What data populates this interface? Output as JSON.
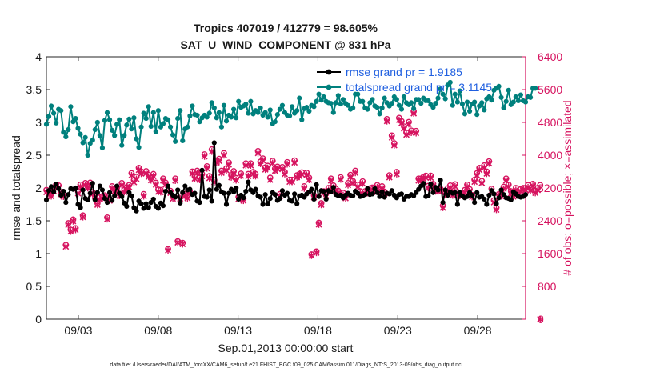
{
  "chart_data": {
    "type": "line",
    "title": "Tropics 407019 / 412779 = 98.605%",
    "subtitle": "SAT_U_WIND_COMPONENT @ 831 hPa",
    "xlabel": "Sep.01,2013 00:00:00 start",
    "ylabel": "rmse and totalspread",
    "ylabel_right": "# of obs: o=possible; ×=assimilated",
    "x_ticks": [
      "09/03",
      "09/08",
      "09/13",
      "09/18",
      "09/23",
      "09/28"
    ],
    "x_tick_days": [
      3,
      8,
      13,
      18,
      23,
      28
    ],
    "x_range_days": [
      1.0,
      31.0
    ],
    "ylim": [
      0,
      4
    ],
    "y_ticks": [
      "0",
      "0.5",
      "1",
      "1.5",
      "2",
      "2.5",
      "3",
      "3.5",
      "4"
    ],
    "ylim_right": [
      0,
      6400
    ],
    "y_ticks_right": [
      "0",
      "800",
      "1600",
      "2400",
      "3200",
      "4000",
      "4800",
      "5600",
      "6400"
    ],
    "legend_position": "top-right",
    "colors": {
      "rmse": "#000000",
      "totalspread": "#00807d",
      "obs": "#d6135f",
      "legend_text": "#1f5fe0"
    },
    "footer": "data file: /Users/raeder/DAI/ATM_forcXX/CAM6_setup/f.e21.FHIST_BGC.f09_025.CAM6assim.011/Diags_NTrS_2013-09/obs_diag_output.nc",
    "series": [
      {
        "name": "rmse grand pr = 1.9185",
        "marker": "filled-circle",
        "values": [
          1.82,
          1.96,
          2.02,
          1.94,
          2.06,
          1.99,
          1.89,
          1.95,
          1.78,
          1.9,
          1.99,
          1.98,
          2.0,
          1.75,
          1.7,
          1.97,
          1.84,
          1.82,
          1.92,
          2.07,
          1.82,
          1.93,
          2.03,
          1.97,
          1.84,
          1.78,
          1.93,
          1.81,
          1.88,
          2.03,
          1.92,
          1.87,
          1.77,
          1.72,
          1.93,
          1.88,
          1.7,
          1.65,
          1.8,
          1.76,
          1.69,
          1.76,
          1.7,
          1.78,
          1.83,
          1.72,
          1.69,
          1.77,
          1.73,
          1.95,
          2.03,
          1.93,
          1.89,
          1.86,
          1.97,
          1.77,
          1.93,
          2.03,
          1.97,
          1.98,
          1.9,
          1.92,
          1.8,
          1.78,
          2.27,
          1.87,
          1.86,
          1.97,
          1.8,
          2.69,
          1.98,
          2.04,
          1.94,
          1.92,
          1.75,
          1.92,
          1.98,
          1.94,
          2.0,
          1.83,
          1.89,
          1.85,
          1.95,
          2.09,
          1.97,
          1.93,
          1.98,
          1.88,
          1.86,
          1.75,
          1.9,
          1.76,
          1.84,
          1.93,
          1.9,
          1.81,
          1.84,
          1.96,
          1.89,
          1.92,
          1.81,
          1.8,
          1.91,
          1.76,
          1.88,
          1.89,
          1.86,
          1.91,
          1.94,
          1.98,
          1.83,
          2.05,
          1.87,
          1.96,
          1.95,
          1.83,
          1.96,
          1.94,
          2.01,
          1.9,
          1.88,
          1.89,
          1.85,
          1.89,
          1.92,
          1.89,
          1.88,
          1.95,
          1.92,
          1.87,
          1.88,
          1.9,
          1.99,
          1.9,
          1.91,
          1.99,
          1.93,
          1.87,
          1.94,
          1.86,
          1.92,
          1.91,
          1.96,
          1.89,
          1.85,
          1.9,
          1.91,
          1.83,
          1.87,
          1.87,
          1.9,
          1.88,
          1.93,
          1.98,
          2.03,
          2.07,
          1.87,
          1.88,
          2.06,
          1.93,
          2.01,
          1.97,
          2.12,
          1.78,
          1.97,
          1.89,
          1.94,
          1.92,
          1.93,
          1.75,
          1.93,
          1.88,
          1.85,
          1.87,
          1.93,
          1.89,
          1.78,
          1.93,
          1.86,
          1.87,
          1.83,
          1.75,
          1.89,
          1.96,
          1.91,
          1.76,
          1.85,
          1.97,
          1.9,
          1.85,
          1.84,
          1.82,
          1.94,
          1.91,
          1.87,
          1.86,
          1.87,
          1.9
        ]
      },
      {
        "name": "totalspread grand pr = 3.1145",
        "marker": "filled-circle",
        "values": [
          2.97,
          3.09,
          3.25,
          3.14,
          2.99,
          3.2,
          3.18,
          2.85,
          2.78,
          2.89,
          3.24,
          3.01,
          3.06,
          2.91,
          2.82,
          2.69,
          2.77,
          2.5,
          2.68,
          2.73,
          2.89,
          3.0,
          2.8,
          2.61,
          3.03,
          3.15,
          3.04,
          2.88,
          2.8,
          2.97,
          3.04,
          2.65,
          2.8,
          2.96,
          3.05,
          2.9,
          3.07,
          2.75,
          2.62,
          2.93,
          3.14,
          3.06,
          3.24,
          2.94,
          3.15,
          2.86,
          3.18,
          2.93,
          2.98,
          3.06,
          3.04,
          2.93,
          2.81,
          2.71,
          3.06,
          3.18,
          2.72,
          2.9,
          2.93,
          3.1,
          3.25,
          3.12,
          3.11,
          3.01,
          3.07,
          3.11,
          3.08,
          3.14,
          3.3,
          3.22,
          3.07,
          3.15,
          2.93,
          3.26,
          3.02,
          3.11,
          3.08,
          3.2,
          3.07,
          3.32,
          3.23,
          3.25,
          3.28,
          3.14,
          3.32,
          3.13,
          3.18,
          3.15,
          3.22,
          3.11,
          3.15,
          3.08,
          3.19,
          2.98,
          3.01,
          3.12,
          3.2,
          3.26,
          3.15,
          3.11,
          3.1,
          3.24,
          3.14,
          3.18,
          3.37,
          3.04,
          3.21,
          3.23,
          3.17,
          3.26,
          3.24,
          3.32,
          3.43,
          3.34,
          3.39,
          3.32,
          3.3,
          3.29,
          3.15,
          3.3,
          3.41,
          3.28,
          3.35,
          3.29,
          3.26,
          3.2,
          3.22,
          3.43,
          3.43,
          3.32,
          3.32,
          3.22,
          3.2,
          3.3,
          3.35,
          3.25,
          3.23,
          3.13,
          3.22,
          3.37,
          3.3,
          3.25,
          3.29,
          3.39,
          3.35,
          3.26,
          3.2,
          3.39,
          3.3,
          3.27,
          3.3,
          3.21,
          3.35,
          3.35,
          3.29,
          3.37,
          3.33,
          3.33,
          3.27,
          3.23,
          3.29,
          3.37,
          3.51,
          3.43,
          3.36,
          3.57,
          3.61,
          3.26,
          3.43,
          3.31,
          3.48,
          3.28,
          3.13,
          3.31,
          3.17,
          3.28,
          3.31,
          3.12,
          3.25,
          3.3,
          3.19,
          3.36,
          3.39,
          3.34,
          3.49,
          3.52,
          3.55,
          3.38,
          3.22,
          3.32,
          3.49,
          3.27,
          3.31,
          3.39,
          3.33,
          3.42,
          3.33,
          3.31,
          3.39,
          3.38,
          3.52,
          3.52
        ]
      },
      {
        "name": "obs possible",
        "marker": "circle",
        "axis": "right",
        "values": [
          3150,
          3100,
          3050,
          3180,
          3280,
          3260,
          3100,
          3040,
          1810,
          2340,
          2180,
          2430,
          2220,
          3120,
          3280,
          2530,
          3320,
          3250,
          3330,
          3100,
          3040,
          2830,
          2970,
          3000,
          3020,
          2480,
          2930,
          3240,
          3170,
          3200,
          3060,
          3320,
          3150,
          3220,
          3270,
          3560,
          3390,
          3470,
          3690,
          3600,
          3050,
          3610,
          3520,
          3440,
          3540,
          3330,
          3160,
          3150,
          3430,
          3330,
          1710,
          3130,
          2990,
          3430,
          1900,
          2990,
          1860,
          3050,
          3000,
          3110,
          3600,
          3480,
          3620,
          3450,
          3540,
          4020,
          3730,
          3490,
          4140,
          3390,
          3870,
          3910,
          3620,
          4050,
          3680,
          3820,
          3510,
          3610,
          3440,
          2980,
          3550,
          2940,
          3800,
          3540,
          3800,
          3590,
          3540,
          4100,
          3840,
          3920,
          3700,
          3740,
          3450,
          3860,
          3670,
          3720,
          3050,
          3710,
          3590,
          3830,
          3400,
          3400,
          3870,
          3510,
          3540,
          3580,
          3240,
          3570,
          3450,
          1580,
          3020,
          1650,
          2350,
          2830,
          3120,
          3060,
          3200,
          3430,
          3260,
          3180,
          3130,
          3460,
          3080,
          3000,
          3320,
          3520,
          3370,
          3620,
          3280,
          3120,
          3360,
          3120,
          3130,
          3190,
          3210,
          3160,
          3270,
          3150,
          3240,
          3110,
          4880,
          3510,
          4480,
          4290,
          3590,
          4910,
          4830,
          4700,
          4550,
          4810,
          4600,
          5070,
          4590,
          3430,
          3430,
          3470,
          3500,
          3250,
          3500,
          3300,
          3170,
          3170,
          3180,
          2770,
          3080,
          3190,
          3260,
          3070,
          3290,
          3100,
          3060,
          3060,
          3150,
          3280,
          3170,
          3030,
          3400,
          3560,
          3690,
          3370,
          3750,
          3600,
          3850,
          3180,
          2900,
          2720,
          3050,
          3050,
          3230,
          3430,
          3280,
          3120,
          3040,
          3200,
          3100,
          3170,
          3200,
          3200,
          3270,
          3190,
          3300,
          3130,
          3200,
          3270
        ]
      },
      {
        "name": "obs assimilated",
        "marker": "cross",
        "axis": "right",
        "values": [
          3100,
          3050,
          3000,
          3120,
          3230,
          3210,
          3050,
          2990,
          1770,
          2300,
          2140,
          2390,
          2180,
          3070,
          3230,
          2490,
          3270,
          3200,
          3280,
          3050,
          2990,
          2790,
          2920,
          2950,
          2980,
          2440,
          2890,
          3190,
          3120,
          3150,
          3010,
          3270,
          3100,
          3170,
          3220,
          3510,
          3340,
          3420,
          3640,
          3550,
          3000,
          3560,
          3470,
          3390,
          3490,
          3280,
          3110,
          3100,
          3380,
          3280,
          1680,
          3080,
          2940,
          3380,
          1870,
          2940,
          1830,
          3000,
          2950,
          3060,
          3550,
          3430,
          3570,
          3400,
          3490,
          3970,
          3680,
          3440,
          4090,
          3340,
          3820,
          3860,
          3570,
          4000,
          3630,
          3770,
          3460,
          3560,
          3390,
          2930,
          3500,
          2890,
          3750,
          3490,
          3750,
          3540,
          3490,
          4050,
          3790,
          3870,
          3650,
          3690,
          3400,
          3810,
          3620,
          3670,
          3000,
          3660,
          3540,
          3780,
          3350,
          3350,
          3820,
          3460,
          3490,
          3530,
          3190,
          3520,
          3400,
          1550,
          2970,
          1620,
          2310,
          2790,
          3070,
          3010,
          3150,
          3380,
          3210,
          3130,
          3080,
          3410,
          3030,
          2950,
          3270,
          3470,
          3320,
          3570,
          3230,
          3070,
          3310,
          3070,
          3080,
          3140,
          3160,
          3110,
          3220,
          3100,
          3190,
          3060,
          4830,
          3460,
          4430,
          4240,
          3540,
          4860,
          4780,
          4650,
          4500,
          4760,
          4550,
          5020,
          4540,
          3380,
          3380,
          3420,
          3450,
          3200,
          3450,
          3250,
          3120,
          3120,
          3130,
          2720,
          3030,
          3140,
          3210,
          3020,
          3240,
          3050,
          3010,
          3010,
          3100,
          3230,
          3120,
          2980,
          3350,
          3510,
          3640,
          3320,
          3700,
          3550,
          3800,
          3130,
          2850,
          2670,
          3000,
          3000,
          3180,
          3380,
          3230,
          3070,
          2990,
          3150,
          3050,
          3120,
          3150,
          3150,
          3220,
          3140,
          3250,
          3080,
          3150,
          0
        ]
      }
    ]
  }
}
